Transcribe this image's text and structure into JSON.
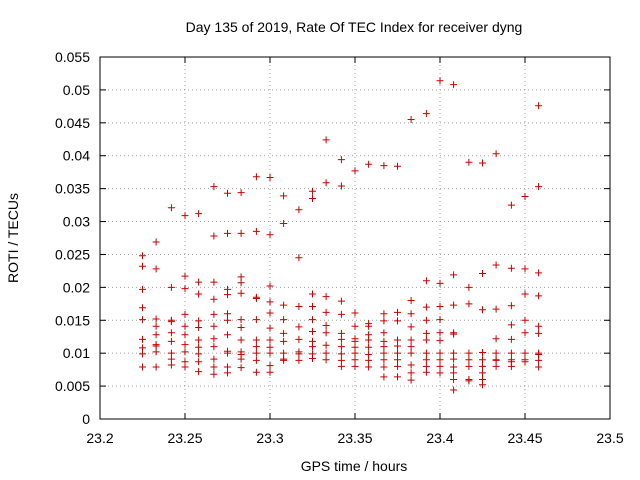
{
  "chart_data": {
    "type": "scatter",
    "title": "Day 135 of 2019, Rate Of TEC Index for receiver dyng",
    "xlabel": "GPS time / hours",
    "ylabel": "ROTI / TECUs",
    "xlim": [
      23.2,
      23.5
    ],
    "ylim": [
      0,
      0.055
    ],
    "xticks": [
      "23.2",
      "23.25",
      "23.3",
      "23.35",
      "23.4",
      "23.45",
      "23.5"
    ],
    "yticks": [
      "0",
      "0.005",
      "0.01",
      "0.015",
      "0.02",
      "0.025",
      "0.03",
      "0.035",
      "0.04",
      "0.045",
      "0.05",
      "0.055"
    ],
    "grid": true,
    "marker": "+",
    "color": "#cc0000",
    "series": [
      {
        "name": "ROTI",
        "points": [
          [
            23.225,
            0.0248
          ],
          [
            23.225,
            0.0232
          ],
          [
            23.225,
            0.0197
          ],
          [
            23.225,
            0.0169
          ],
          [
            23.225,
            0.0151
          ],
          [
            23.225,
            0.0121
          ],
          [
            23.225,
            0.0108
          ],
          [
            23.225,
            0.0099
          ],
          [
            23.225,
            0.0079
          ],
          [
            23.233,
            0.0269
          ],
          [
            23.233,
            0.0228
          ],
          [
            23.233,
            0.0152
          ],
          [
            23.233,
            0.0141
          ],
          [
            23.233,
            0.0128
          ],
          [
            23.233,
            0.0113
          ],
          [
            23.233,
            0.0111
          ],
          [
            23.233,
            0.0102
          ],
          [
            23.233,
            0.0079
          ],
          [
            23.242,
            0.0321
          ],
          [
            23.242,
            0.02
          ],
          [
            23.242,
            0.015
          ],
          [
            23.242,
            0.0148
          ],
          [
            23.242,
            0.0131
          ],
          [
            23.242,
            0.0118
          ],
          [
            23.242,
            0.01
          ],
          [
            23.242,
            0.0091
          ],
          [
            23.242,
            0.0082
          ],
          [
            23.25,
            0.0309
          ],
          [
            23.25,
            0.0217
          ],
          [
            23.25,
            0.0198
          ],
          [
            23.25,
            0.0159
          ],
          [
            23.25,
            0.0141
          ],
          [
            23.25,
            0.0128
          ],
          [
            23.25,
            0.0113
          ],
          [
            23.25,
            0.0102
          ],
          [
            23.25,
            0.0087
          ],
          [
            23.25,
            0.0079
          ],
          [
            23.258,
            0.0312
          ],
          [
            23.258,
            0.0208
          ],
          [
            23.258,
            0.019
          ],
          [
            23.258,
            0.0149
          ],
          [
            23.258,
            0.0139
          ],
          [
            23.258,
            0.012
          ],
          [
            23.258,
            0.0109
          ],
          [
            23.258,
            0.0099
          ],
          [
            23.258,
            0.0087
          ],
          [
            23.258,
            0.0072
          ],
          [
            23.267,
            0.0353
          ],
          [
            23.267,
            0.0278
          ],
          [
            23.267,
            0.0208
          ],
          [
            23.267,
            0.0182
          ],
          [
            23.267,
            0.0159
          ],
          [
            23.267,
            0.0141
          ],
          [
            23.267,
            0.0122
          ],
          [
            23.267,
            0.011
          ],
          [
            23.267,
            0.0091
          ],
          [
            23.267,
            0.0079
          ],
          [
            23.267,
            0.0068
          ],
          [
            23.275,
            0.0343
          ],
          [
            23.275,
            0.0282
          ],
          [
            23.275,
            0.0197
          ],
          [
            23.275,
            0.0189
          ],
          [
            23.275,
            0.016
          ],
          [
            23.275,
            0.015
          ],
          [
            23.275,
            0.0128
          ],
          [
            23.275,
            0.0103
          ],
          [
            23.275,
            0.01
          ],
          [
            23.275,
            0.0079
          ],
          [
            23.275,
            0.007
          ],
          [
            23.283,
            0.0344
          ],
          [
            23.283,
            0.0282
          ],
          [
            23.283,
            0.0216
          ],
          [
            23.283,
            0.0207
          ],
          [
            23.283,
            0.0191
          ],
          [
            23.283,
            0.0151
          ],
          [
            23.283,
            0.0139
          ],
          [
            23.283,
            0.012
          ],
          [
            23.283,
            0.0102
          ],
          [
            23.283,
            0.0098
          ],
          [
            23.283,
            0.0091
          ],
          [
            23.283,
            0.0078
          ],
          [
            23.292,
            0.0368
          ],
          [
            23.292,
            0.0285
          ],
          [
            23.292,
            0.0185
          ],
          [
            23.292,
            0.0183
          ],
          [
            23.292,
            0.0151
          ],
          [
            23.292,
            0.012
          ],
          [
            23.292,
            0.011
          ],
          [
            23.292,
            0.01
          ],
          [
            23.292,
            0.0089
          ],
          [
            23.292,
            0.0071
          ],
          [
            23.3,
            0.0367
          ],
          [
            23.3,
            0.028
          ],
          [
            23.3,
            0.0202
          ],
          [
            23.3,
            0.0178
          ],
          [
            23.3,
            0.0161
          ],
          [
            23.3,
            0.0138
          ],
          [
            23.3,
            0.012
          ],
          [
            23.3,
            0.0109
          ],
          [
            23.3,
            0.01
          ],
          [
            23.3,
            0.0081
          ],
          [
            23.3,
            0.0071
          ],
          [
            23.308,
            0.0339
          ],
          [
            23.308,
            0.0297
          ],
          [
            23.308,
            0.0173
          ],
          [
            23.308,
            0.0151
          ],
          [
            23.308,
            0.013
          ],
          [
            23.308,
            0.0118
          ],
          [
            23.308,
            0.01
          ],
          [
            23.308,
            0.0091
          ],
          [
            23.308,
            0.0089
          ],
          [
            23.317,
            0.0318
          ],
          [
            23.317,
            0.0245
          ],
          [
            23.317,
            0.0171
          ],
          [
            23.317,
            0.014
          ],
          [
            23.317,
            0.0121
          ],
          [
            23.317,
            0.0102
          ],
          [
            23.317,
            0.0099
          ],
          [
            23.317,
            0.0089
          ],
          [
            23.325,
            0.0346
          ],
          [
            23.325,
            0.0335
          ],
          [
            23.325,
            0.019
          ],
          [
            23.325,
            0.0171
          ],
          [
            23.325,
            0.0151
          ],
          [
            23.325,
            0.0133
          ],
          [
            23.325,
            0.0118
          ],
          [
            23.325,
            0.011
          ],
          [
            23.325,
            0.0099
          ],
          [
            23.325,
            0.0092
          ],
          [
            23.333,
            0.0424
          ],
          [
            23.333,
            0.0359
          ],
          [
            23.333,
            0.0186
          ],
          [
            23.333,
            0.0162
          ],
          [
            23.333,
            0.0142
          ],
          [
            23.333,
            0.0131
          ],
          [
            23.333,
            0.0112
          ],
          [
            23.333,
            0.01
          ],
          [
            23.333,
            0.009
          ],
          [
            23.342,
            0.0394
          ],
          [
            23.342,
            0.0354
          ],
          [
            23.342,
            0.0179
          ],
          [
            23.342,
            0.0159
          ],
          [
            23.342,
            0.013
          ],
          [
            23.342,
            0.0121
          ],
          [
            23.342,
            0.011
          ],
          [
            23.342,
            0.0099
          ],
          [
            23.342,
            0.0089
          ],
          [
            23.342,
            0.008
          ],
          [
            23.35,
            0.0377
          ],
          [
            23.35,
            0.0161
          ],
          [
            23.35,
            0.0141
          ],
          [
            23.35,
            0.0122
          ],
          [
            23.35,
            0.0118
          ],
          [
            23.35,
            0.0109
          ],
          [
            23.35,
            0.01
          ],
          [
            23.35,
            0.009
          ],
          [
            23.35,
            0.008
          ],
          [
            23.358,
            0.0387
          ],
          [
            23.358,
            0.0145
          ],
          [
            23.358,
            0.0141
          ],
          [
            23.358,
            0.0128
          ],
          [
            23.358,
            0.012
          ],
          [
            23.358,
            0.0109
          ],
          [
            23.358,
            0.0098
          ],
          [
            23.358,
            0.0089
          ],
          [
            23.358,
            0.0079
          ],
          [
            23.367,
            0.0385
          ],
          [
            23.367,
            0.016
          ],
          [
            23.367,
            0.0149
          ],
          [
            23.367,
            0.0131
          ],
          [
            23.367,
            0.0118
          ],
          [
            23.367,
            0.011
          ],
          [
            23.367,
            0.01
          ],
          [
            23.367,
            0.009
          ],
          [
            23.367,
            0.0079
          ],
          [
            23.367,
            0.0064
          ],
          [
            23.375,
            0.0384
          ],
          [
            23.375,
            0.0162
          ],
          [
            23.375,
            0.0149
          ],
          [
            23.375,
            0.012
          ],
          [
            23.375,
            0.0111
          ],
          [
            23.375,
            0.01
          ],
          [
            23.375,
            0.009
          ],
          [
            23.375,
            0.008
          ],
          [
            23.375,
            0.0064
          ],
          [
            23.383,
            0.0455
          ],
          [
            23.383,
            0.018
          ],
          [
            23.383,
            0.016
          ],
          [
            23.383,
            0.014
          ],
          [
            23.383,
            0.012
          ],
          [
            23.383,
            0.011
          ],
          [
            23.383,
            0.01
          ],
          [
            23.383,
            0.0082
          ],
          [
            23.383,
            0.007
          ],
          [
            23.383,
            0.0059
          ],
          [
            23.392,
            0.0464
          ],
          [
            23.392,
            0.021
          ],
          [
            23.392,
            0.017
          ],
          [
            23.392,
            0.015
          ],
          [
            23.392,
            0.013
          ],
          [
            23.392,
            0.012
          ],
          [
            23.392,
            0.01
          ],
          [
            23.392,
            0.009
          ],
          [
            23.392,
            0.008
          ],
          [
            23.392,
            0.0071
          ],
          [
            23.4,
            0.0514
          ],
          [
            23.4,
            0.0206
          ],
          [
            23.4,
            0.0171
          ],
          [
            23.4,
            0.0151
          ],
          [
            23.4,
            0.0131
          ],
          [
            23.4,
            0.0119
          ],
          [
            23.4,
            0.01
          ],
          [
            23.4,
            0.009
          ],
          [
            23.4,
            0.008
          ],
          [
            23.4,
            0.007
          ],
          [
            23.408,
            0.0508
          ],
          [
            23.408,
            0.0219
          ],
          [
            23.408,
            0.0173
          ],
          [
            23.408,
            0.0131
          ],
          [
            23.408,
            0.0129
          ],
          [
            23.408,
            0.01
          ],
          [
            23.408,
            0.0091
          ],
          [
            23.408,
            0.0079
          ],
          [
            23.408,
            0.007
          ],
          [
            23.408,
            0.006
          ],
          [
            23.408,
            0.0044
          ],
          [
            23.417,
            0.039
          ],
          [
            23.417,
            0.02
          ],
          [
            23.417,
            0.0175
          ],
          [
            23.417,
            0.01
          ],
          [
            23.417,
            0.009
          ],
          [
            23.417,
            0.008
          ],
          [
            23.417,
            0.006
          ],
          [
            23.417,
            0.0058
          ],
          [
            23.425,
            0.0389
          ],
          [
            23.425,
            0.0221
          ],
          [
            23.425,
            0.0166
          ],
          [
            23.425,
            0.0101
          ],
          [
            23.425,
            0.009
          ],
          [
            23.425,
            0.008
          ],
          [
            23.425,
            0.007
          ],
          [
            23.425,
            0.006
          ],
          [
            23.425,
            0.0052
          ],
          [
            23.433,
            0.0403
          ],
          [
            23.433,
            0.0234
          ],
          [
            23.433,
            0.0167
          ],
          [
            23.433,
            0.0122
          ],
          [
            23.433,
            0.01
          ],
          [
            23.433,
            0.009
          ],
          [
            23.433,
            0.0089
          ],
          [
            23.433,
            0.008
          ],
          [
            23.442,
            0.0325
          ],
          [
            23.442,
            0.0229
          ],
          [
            23.442,
            0.0172
          ],
          [
            23.442,
            0.0143
          ],
          [
            23.442,
            0.0121
          ],
          [
            23.442,
            0.01
          ],
          [
            23.442,
            0.009
          ],
          [
            23.442,
            0.0087
          ],
          [
            23.442,
            0.008
          ],
          [
            23.45,
            0.0338
          ],
          [
            23.45,
            0.0228
          ],
          [
            23.45,
            0.019
          ],
          [
            23.45,
            0.015
          ],
          [
            23.45,
            0.0131
          ],
          [
            23.45,
            0.01
          ],
          [
            23.45,
            0.009
          ],
          [
            23.45,
            0.0087
          ],
          [
            23.458,
            0.0476
          ],
          [
            23.458,
            0.0353
          ],
          [
            23.458,
            0.0222
          ],
          [
            23.458,
            0.0187
          ],
          [
            23.458,
            0.0141
          ],
          [
            23.458,
            0.013
          ],
          [
            23.458,
            0.01
          ],
          [
            23.458,
            0.0098
          ],
          [
            23.458,
            0.0089
          ],
          [
            23.458,
            0.0079
          ]
        ]
      }
    ]
  }
}
